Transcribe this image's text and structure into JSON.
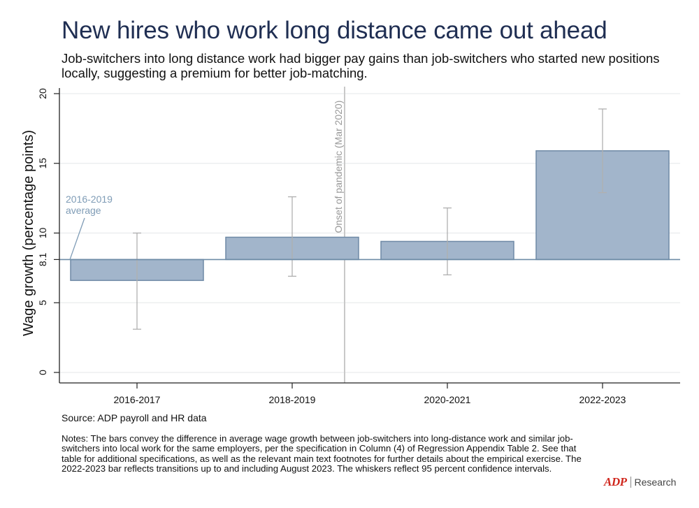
{
  "title": "New hires who work long distance came out ahead",
  "subtitle": "Job-switchers into long distance work had bigger pay gains than job-switchers who started new positions locally, suggesting a premium for better job-matching.",
  "source": "Source: ADP payroll and HR data",
  "notes": "Notes: The bars convey the difference in average wage growth between job-switchers into long-distance work and similar job-switchers into local work for the same employers, per the specification in Column (4) of Regression Appendix Table 2. See that table for additional specifications, as well as the relevant main text footnotes for further details about the empirical exercise. The 2022-2023 bar reflects transitions up to and including August 2023. The whiskers reflect 95 percent confidence intervals.",
  "logo": {
    "mark": "ADP",
    "word": "Research"
  },
  "colors": {
    "bar_fill": "#a2b5cb",
    "bar_stroke": "#6f8aa6",
    "baseline": "#6d8ba6",
    "title": "#1f2e52",
    "grid": "#e9eced"
  },
  "chart_data": {
    "type": "bar",
    "ylabel": "Wage growth (percentage points)",
    "xlabel": "",
    "ylim": [
      0,
      20
    ],
    "yticks": [
      "0",
      "5",
      "8.1",
      "10",
      "15",
      "20"
    ],
    "baseline": {
      "value": 8.1,
      "label_line1": "2016-2019",
      "label_line2": "average"
    },
    "event_line": {
      "position": "between 2018-2019 and 2020-2021",
      "label": "Onset of pandemic (Mar 2020)"
    },
    "categories": [
      "2016-2017",
      "2018-2019",
      "2020-2021",
      "2022-2023"
    ],
    "values": [
      6.6,
      9.7,
      9.4,
      15.9
    ],
    "ci_low": [
      3.1,
      6.9,
      7.0,
      12.9
    ],
    "ci_high": [
      10.0,
      12.6,
      11.8,
      18.9
    ],
    "grid": true
  }
}
